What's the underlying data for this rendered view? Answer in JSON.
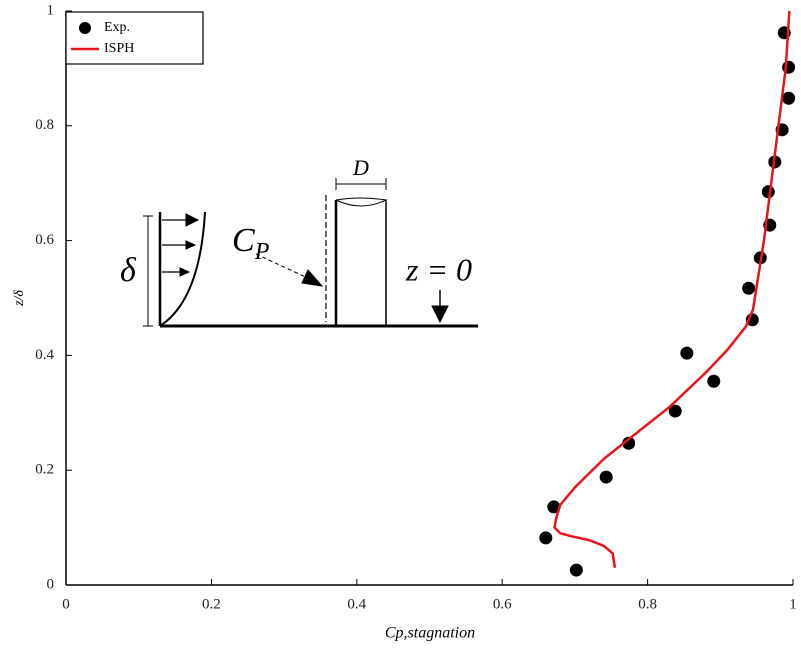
{
  "chart_data": {
    "type": "scatter",
    "xlabel": "Cp,stagnation",
    "ylabel": "z/δ",
    "xlim": [
      0,
      1
    ],
    "ylim": [
      0,
      1
    ],
    "xticks": [
      0,
      0.2,
      0.4,
      0.6,
      0.8,
      1
    ],
    "yticks": [
      0,
      0.2,
      0.4,
      0.6,
      0.8,
      1
    ],
    "legend": "upper left",
    "series": [
      {
        "name": "Exp.",
        "type": "scatter",
        "color": "#000000",
        "x": [
          0.988,
          0.994,
          0.994,
          0.985,
          0.975,
          0.966,
          0.968,
          0.955,
          0.939,
          0.944,
          0.854,
          0.891,
          0.838,
          0.774,
          0.743,
          0.671,
          0.66,
          0.702
        ],
        "y": [
          0.962,
          0.902,
          0.848,
          0.793,
          0.737,
          0.685,
          0.627,
          0.57,
          0.517,
          0.462,
          0.404,
          0.355,
          0.303,
          0.247,
          0.188,
          0.136,
          0.082,
          0.026
        ]
      },
      {
        "name": "ISPH",
        "type": "line",
        "color": "#e8141c",
        "x": [
          0.755,
          0.752,
          0.74,
          0.72,
          0.695,
          0.68,
          0.672,
          0.674,
          0.68,
          0.7,
          0.74,
          0.78,
          0.83,
          0.88,
          0.91,
          0.935,
          0.945,
          0.95,
          0.96,
          0.97,
          0.98,
          0.99,
          0.995
        ],
        "y": [
          0.03,
          0.055,
          0.068,
          0.078,
          0.085,
          0.09,
          0.1,
          0.115,
          0.14,
          0.17,
          0.22,
          0.26,
          0.31,
          0.37,
          0.41,
          0.45,
          0.48,
          0.52,
          0.6,
          0.7,
          0.8,
          0.9,
          1.0
        ]
      }
    ],
    "annotations": {
      "delta": "δ",
      "cp_main": "C",
      "cp_sub": "P",
      "diameter": "D",
      "origin": "z = 0"
    }
  }
}
